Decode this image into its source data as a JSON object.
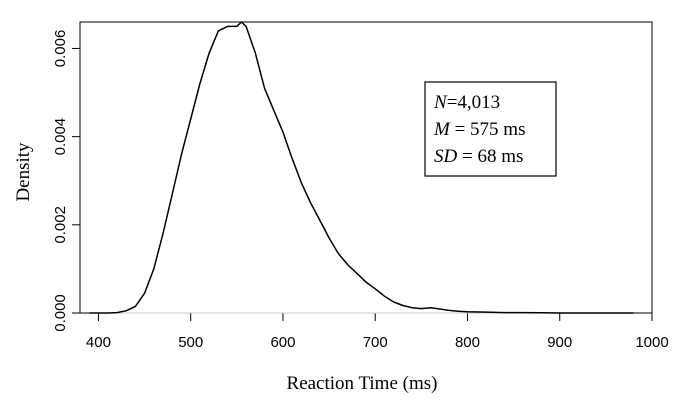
{
  "chart_data": {
    "type": "line",
    "title": "",
    "xlabel": "Reaction Time (ms)",
    "ylabel": "Density",
    "xlim": [
      380,
      1000
    ],
    "ylim": [
      0,
      0.0066
    ],
    "xticks": [
      400,
      500,
      600,
      700,
      800,
      900,
      1000
    ],
    "xtick_labels": [
      "400",
      "500",
      "600",
      "700",
      "800",
      "900",
      "1000"
    ],
    "yticks": [
      0,
      0.002,
      0.004,
      0.006
    ],
    "ytick_labels": [
      "0.000",
      "0.002",
      "0.004",
      "0.006"
    ],
    "baseline_color": "#c8c8c8",
    "line_color": "#000000",
    "legend_position": "upper-right",
    "annotation": {
      "lines": [
        {
          "italic": "N",
          "text": "=4,013"
        },
        {
          "italic": "M",
          "text": " = 575 ms"
        },
        {
          "italic": "SD",
          "text": " = 68 ms"
        }
      ]
    },
    "series": [
      {
        "x": [
          390,
          400,
          410,
          420,
          430,
          440,
          450,
          460,
          470,
          480,
          490,
          500,
          510,
          520,
          530,
          540,
          550,
          555,
          560,
          570,
          580,
          590,
          600,
          610,
          620,
          630,
          640,
          650,
          660,
          670,
          680,
          690,
          700,
          710,
          720,
          730,
          740,
          750,
          760,
          770,
          780,
          790,
          800,
          820,
          840,
          860,
          880,
          900,
          930,
          960,
          980
        ],
        "y": [
          0.0,
          0.0,
          0.0,
          1e-05,
          5e-05,
          0.00015,
          0.00045,
          0.001,
          0.0018,
          0.0027,
          0.0036,
          0.0044,
          0.0052,
          0.0059,
          0.0064,
          0.0065,
          0.0065,
          0.0066,
          0.0065,
          0.0059,
          0.0051,
          0.0046,
          0.0041,
          0.0035,
          0.00295,
          0.0025,
          0.0021,
          0.0017,
          0.00135,
          0.0011,
          0.0009,
          0.0007,
          0.00055,
          0.00038,
          0.00025,
          0.00017,
          0.00012,
          0.0001,
          0.00012,
          9e-05,
          6e-05,
          4e-05,
          3e-05,
          2e-05,
          1e-05,
          1e-05,
          5e-06,
          0.0,
          0.0,
          0.0,
          0.0
        ]
      }
    ]
  }
}
